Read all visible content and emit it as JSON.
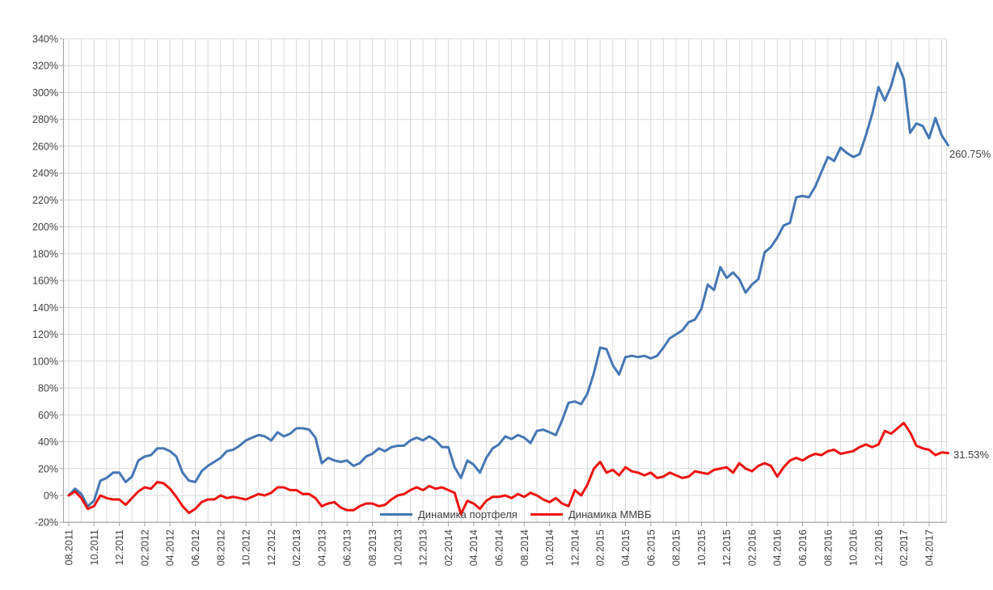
{
  "chart_data": {
    "type": "line",
    "title": "",
    "legend_position": "bottom-center-inside",
    "grid": {
      "vertical": "monthly",
      "horizontal": "every-20-percent"
    },
    "colors": {
      "gridline": "#d9d9d9",
      "axis": "#a6a6a6",
      "label": "#3f3f3f",
      "background": "#ffffff"
    },
    "y_axis": {
      "min": -20,
      "max": 340,
      "step": 20,
      "unit": "%",
      "tick_labels": [
        "-20%",
        "0%",
        "20%",
        "40%",
        "60%",
        "80%",
        "100%",
        "120%",
        "140%",
        "160%",
        "180%",
        "200%",
        "220%",
        "240%",
        "260%",
        "280%",
        "300%",
        "320%",
        "340%"
      ]
    },
    "x_axis": {
      "months_per_tick": 2,
      "tick_labels": [
        "08.2011",
        "10.2011",
        "12.2011",
        "02.2012",
        "04.2012",
        "06.2012",
        "08.2012",
        "10.2012",
        "12.2012",
        "02.2013",
        "04.2013",
        "06.2013",
        "08.2013",
        "10.2013",
        "12.2013",
        "02.2014",
        "04.2014",
        "06.2014",
        "08.2014",
        "10.2014",
        "12.2014",
        "02.2015",
        "04.2015",
        "06.2015",
        "08.2015",
        "10.2015",
        "12.2015",
        "02.2016",
        "04.2016",
        "06.2016",
        "08.2016",
        "10.2016",
        "12.2016",
        "02.2017",
        "04.2017"
      ]
    },
    "points_per_month": 2,
    "series": [
      {
        "name": "Динамика портфеля",
        "color": "#4676b4",
        "end_label": "260.75%",
        "end_value": 260.75,
        "values": [
          0,
          5,
          1,
          -8,
          -4,
          11,
          13,
          17,
          17,
          10,
          14,
          26,
          29,
          30,
          35,
          35,
          33,
          29,
          17,
          11,
          10,
          18,
          22,
          25,
          28,
          33,
          34,
          37,
          41,
          43,
          45,
          44,
          41,
          47,
          44,
          46,
          50,
          50,
          49,
          43,
          24,
          28,
          26,
          25,
          26,
          22,
          24,
          29,
          31,
          35,
          33,
          36,
          37,
          37,
          41,
          43,
          41,
          44,
          41,
          36,
          36,
          21,
          13,
          26,
          23,
          17,
          28,
          35,
          38,
          44,
          42,
          45,
          43,
          39,
          48,
          49,
          47,
          45,
          56,
          69,
          70,
          68,
          76,
          91,
          110,
          109,
          97,
          90,
          103,
          104,
          103,
          104,
          102,
          104,
          110,
          117,
          120,
          123,
          129,
          131,
          139,
          157,
          153,
          170,
          162,
          166,
          161,
          151,
          157,
          161,
          181,
          185,
          192,
          201,
          203,
          222,
          223,
          222,
          230,
          241,
          252,
          249,
          259,
          255,
          252,
          254,
          268,
          284,
          304,
          294,
          305,
          322,
          310,
          270,
          277,
          275,
          266,
          281,
          268,
          260.75
        ]
      },
      {
        "name": "Динамика ММВБ",
        "color": "#ee1111",
        "end_label": "31.53%",
        "end_value": 31.53,
        "values": [
          0,
          3,
          -2,
          -10,
          -8,
          0,
          -2,
          -3,
          -3,
          -7,
          -2,
          3,
          6,
          5,
          10,
          9,
          5,
          -1,
          -8,
          -13,
          -10,
          -5,
          -3,
          -3,
          0,
          -2,
          -1,
          -2,
          -3,
          -1,
          1,
          0,
          2,
          6,
          6,
          4,
          4,
          1,
          1,
          -2,
          -8,
          -6,
          -5,
          -9,
          -11,
          -11,
          -8,
          -6,
          -6,
          -8,
          -7,
          -3,
          0,
          1,
          4,
          6,
          4,
          7,
          5,
          6,
          4,
          2,
          -14,
          -4,
          -6,
          -10,
          -4,
          -1,
          -1,
          0,
          -2,
          1,
          -1,
          2,
          0,
          -3,
          -5,
          -2,
          -6,
          -8,
          4,
          0,
          8,
          20,
          25,
          17,
          19,
          15,
          21,
          18,
          17,
          15,
          17,
          13,
          14,
          17,
          15,
          13,
          14,
          18,
          17,
          16,
          19,
          20,
          21,
          17,
          24,
          20,
          18,
          22,
          24,
          22,
          14,
          21,
          26,
          28,
          26,
          29,
          31,
          30,
          33,
          34,
          31,
          32,
          33,
          36,
          38,
          36,
          38,
          48,
          46,
          50,
          54,
          47,
          37,
          35,
          34,
          30,
          32,
          31.53
        ]
      }
    ]
  }
}
